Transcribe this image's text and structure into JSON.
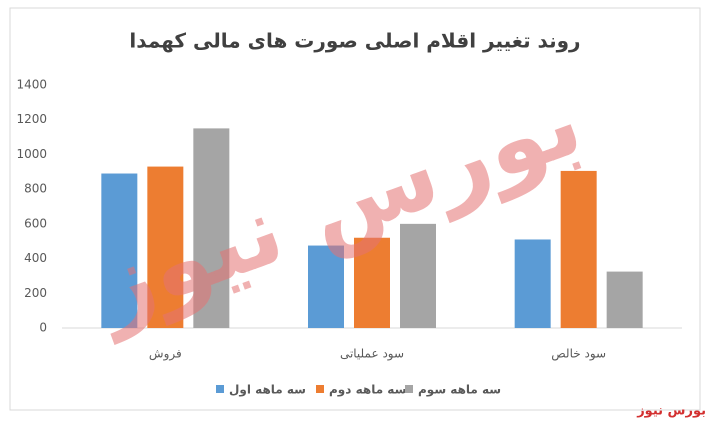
{
  "chart_data": {
    "type": "bar",
    "title": "روند تغییر اقلام اصلی صورت های مالی کهمدا",
    "categories": [
      "فروش",
      "سود عملیاتی",
      "سود خالص"
    ],
    "series": [
      {
        "name": "سه ماهه اول",
        "color": "#5b9bd5",
        "values": [
          890,
          475,
          510
        ]
      },
      {
        "name": "سه ماهه دوم",
        "color": "#ed7d31",
        "values": [
          930,
          520,
          905
        ]
      },
      {
        "name": "سه ماهه سوم",
        "color": "#a5a5a5",
        "values": [
          1150,
          600,
          325
        ]
      }
    ],
    "ylim": [
      0,
      1400
    ],
    "yticks": [
      0,
      200,
      400,
      600,
      800,
      1000,
      1200,
      1400
    ],
    "grid": false,
    "legend": "bottom",
    "watermark": "بورس نیوز",
    "source": "بورس نیوز"
  }
}
